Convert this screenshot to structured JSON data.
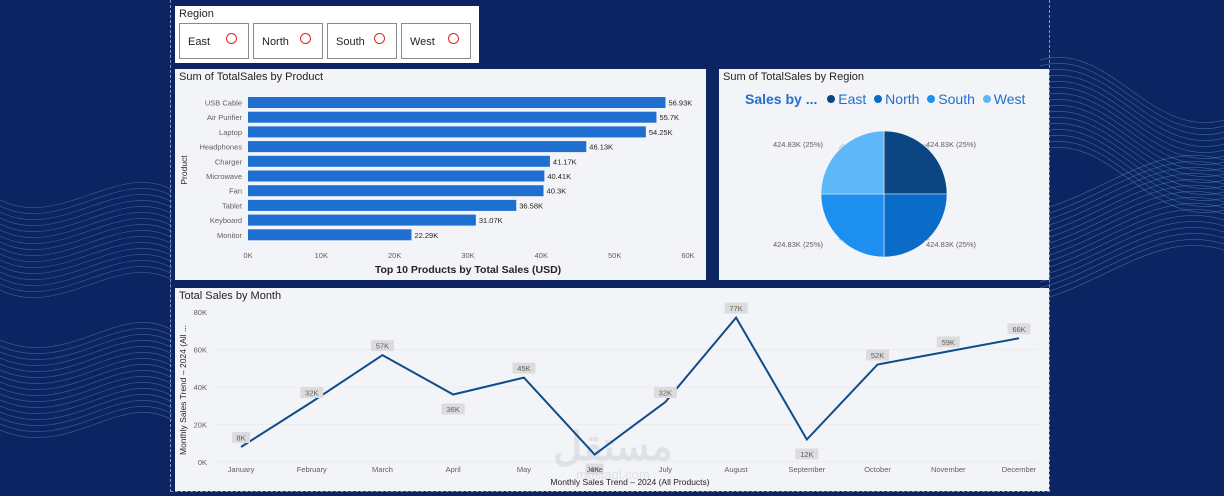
{
  "colors": {
    "background": "#0d2463",
    "bar": "#1f6fd1",
    "line": "#0f4c8a",
    "east": "#0b4682",
    "north": "#0a6bc9",
    "south": "#1c8ff0",
    "west": "#5db7f8"
  },
  "slicer": {
    "title": "Region",
    "options": [
      "East",
      "North",
      "South",
      "West"
    ]
  },
  "bar_panel": {
    "title": "Sum of TotalSales by Product",
    "chart_data": {
      "type": "bar",
      "orientation": "horizontal",
      "categories": [
        "USB Cable",
        "Air Purifier",
        "Laptop",
        "Headphones",
        "Charger",
        "Microwave",
        "Fan",
        "Tablet",
        "Keyboard",
        "Monitor"
      ],
      "values": [
        56930,
        55700,
        54250,
        46130,
        41170,
        40410,
        40300,
        36580,
        31070,
        22290
      ],
      "data_labels": [
        "56.93K",
        "55.7K",
        "54.25K",
        "46.13K",
        "41.17K",
        "40.41K",
        "40.3K",
        "36.58K",
        "31.07K",
        "22.29K"
      ],
      "xticks": [
        "0K",
        "10K",
        "20K",
        "30K",
        "40K",
        "50K",
        "60K"
      ],
      "xlim": [
        0,
        60000
      ],
      "xlabel": "Top 10 Products by Total Sales (USD)",
      "ylabel": "Product"
    }
  },
  "pie_panel": {
    "title": "Sum of TotalSales by Region",
    "legend_title": "Sales by ...",
    "chart_data": {
      "type": "pie",
      "categories": [
        "East",
        "North",
        "South",
        "West"
      ],
      "values": [
        424830,
        424830,
        424830,
        424830
      ],
      "data_labels": [
        "424.83K (25%)",
        "424.83K (25%)",
        "424.83K (25%)",
        "424.83K (25%)"
      ]
    }
  },
  "line_panel": {
    "title": "Total Sales by Month",
    "chart_data": {
      "type": "line",
      "categories": [
        "January",
        "February",
        "March",
        "April",
        "May",
        "June",
        "July",
        "August",
        "September",
        "October",
        "November",
        "December"
      ],
      "values": [
        8000,
        32000,
        57000,
        36000,
        45000,
        4000,
        32000,
        77000,
        12000,
        52000,
        59000,
        66000
      ],
      "data_labels": [
        "8K",
        "32K",
        "57K",
        "36K",
        "45K",
        "4K",
        "32K",
        "77K",
        "12K",
        "52K",
        "59K",
        "66K"
      ],
      "yticks": [
        "0K",
        "20K",
        "40K",
        "60K",
        "80K"
      ],
      "ylim": [
        0,
        80000
      ],
      "xlabel": "Monthly Sales Trend – 2024 (All Products)",
      "ylabel": "Monthly Sales Trend – 2024 (All ..."
    }
  },
  "watermark": {
    "arabic": "مستقل",
    "latin": "mostaql.com"
  }
}
